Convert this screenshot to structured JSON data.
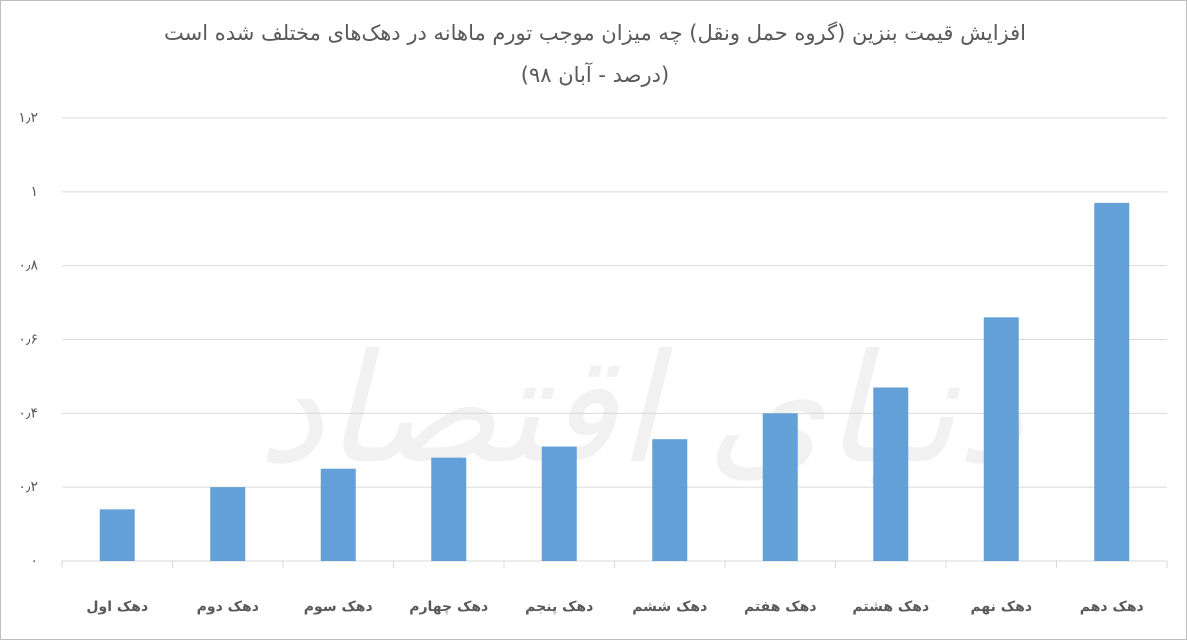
{
  "chart_data": {
    "type": "bar",
    "title": "افزایش قیمت بنزین (گروه حمل ونقل) چه میزان موجب تورم ماهانه در دهک‌های مختلف شده است (درصد - آبان ۹۸)",
    "watermark": "دنیای اقتصاد",
    "categories": [
      "دهک اول",
      "دهک دوم",
      "دهک سوم",
      "دهک چهارم",
      "دهک پنجم",
      "دهک ششم",
      "دهک هفتم",
      "دهک هشتم",
      "دهک نهم",
      "دهک دهم"
    ],
    "values": [
      0.14,
      0.2,
      0.25,
      0.28,
      0.31,
      0.33,
      0.4,
      0.47,
      0.66,
      0.97
    ],
    "color": "#5b9bd5",
    "ylim": [
      0,
      1.2
    ],
    "yticks": [
      {
        "value": 0,
        "label": "۰"
      },
      {
        "value": 0.2,
        "label": "۰٫۲"
      },
      {
        "value": 0.4,
        "label": "۰٫۴"
      },
      {
        "value": 0.6,
        "label": "۰٫۶"
      },
      {
        "value": 0.8,
        "label": "۰٫۸"
      },
      {
        "value": 1,
        "label": "۱"
      },
      {
        "value": 1.2,
        "label": "۱٫۲"
      }
    ],
    "grid": true
  }
}
